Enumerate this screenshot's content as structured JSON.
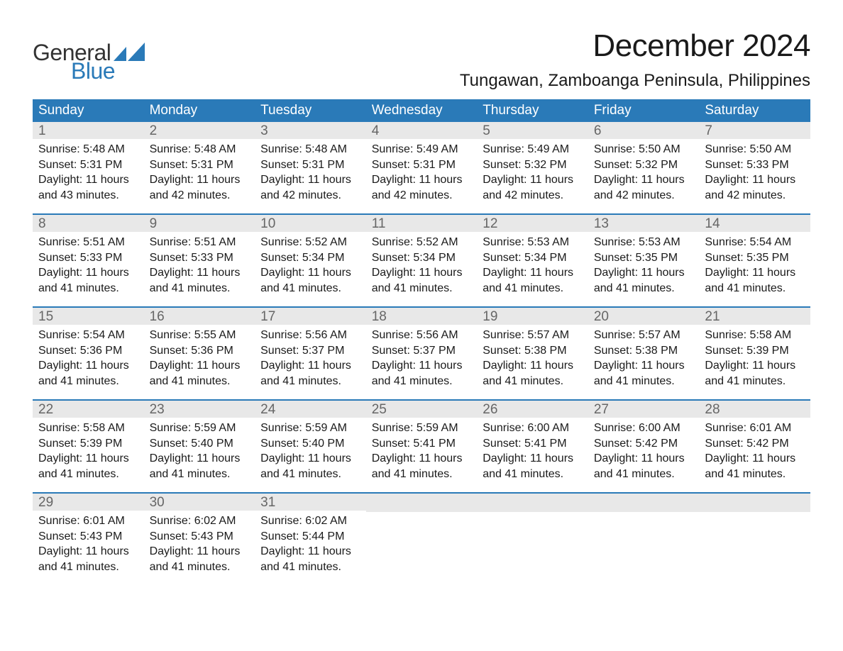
{
  "brand": {
    "line1": "General",
    "line2": "Blue",
    "text_color": "#333333",
    "accent_color": "#2a7ab8"
  },
  "title": "December 2024",
  "location": "Tungawan, Zamboanga Peninsula, Philippines",
  "styling": {
    "header_bg": "#2a7ab8",
    "header_text": "#ffffff",
    "daynum_bg": "#e8e8e8",
    "daynum_text": "#666666",
    "body_text": "#1a1a1a",
    "page_bg": "#ffffff",
    "row_sep_color": "#2a7ab8",
    "title_fontsize": 44,
    "location_fontsize": 24,
    "header_fontsize": 19,
    "daynum_fontsize": 19,
    "cell_fontsize": 16
  },
  "weekdays": [
    "Sunday",
    "Monday",
    "Tuesday",
    "Wednesday",
    "Thursday",
    "Friday",
    "Saturday"
  ],
  "weeks": [
    [
      {
        "day": 1,
        "sunrise": "5:48 AM",
        "sunset": "5:31 PM",
        "daylight": "11 hours and 43 minutes."
      },
      {
        "day": 2,
        "sunrise": "5:48 AM",
        "sunset": "5:31 PM",
        "daylight": "11 hours and 42 minutes."
      },
      {
        "day": 3,
        "sunrise": "5:48 AM",
        "sunset": "5:31 PM",
        "daylight": "11 hours and 42 minutes."
      },
      {
        "day": 4,
        "sunrise": "5:49 AM",
        "sunset": "5:31 PM",
        "daylight": "11 hours and 42 minutes."
      },
      {
        "day": 5,
        "sunrise": "5:49 AM",
        "sunset": "5:32 PM",
        "daylight": "11 hours and 42 minutes."
      },
      {
        "day": 6,
        "sunrise": "5:50 AM",
        "sunset": "5:32 PM",
        "daylight": "11 hours and 42 minutes."
      },
      {
        "day": 7,
        "sunrise": "5:50 AM",
        "sunset": "5:33 PM",
        "daylight": "11 hours and 42 minutes."
      }
    ],
    [
      {
        "day": 8,
        "sunrise": "5:51 AM",
        "sunset": "5:33 PM",
        "daylight": "11 hours and 41 minutes."
      },
      {
        "day": 9,
        "sunrise": "5:51 AM",
        "sunset": "5:33 PM",
        "daylight": "11 hours and 41 minutes."
      },
      {
        "day": 10,
        "sunrise": "5:52 AM",
        "sunset": "5:34 PM",
        "daylight": "11 hours and 41 minutes."
      },
      {
        "day": 11,
        "sunrise": "5:52 AM",
        "sunset": "5:34 PM",
        "daylight": "11 hours and 41 minutes."
      },
      {
        "day": 12,
        "sunrise": "5:53 AM",
        "sunset": "5:34 PM",
        "daylight": "11 hours and 41 minutes."
      },
      {
        "day": 13,
        "sunrise": "5:53 AM",
        "sunset": "5:35 PM",
        "daylight": "11 hours and 41 minutes."
      },
      {
        "day": 14,
        "sunrise": "5:54 AM",
        "sunset": "5:35 PM",
        "daylight": "11 hours and 41 minutes."
      }
    ],
    [
      {
        "day": 15,
        "sunrise": "5:54 AM",
        "sunset": "5:36 PM",
        "daylight": "11 hours and 41 minutes."
      },
      {
        "day": 16,
        "sunrise": "5:55 AM",
        "sunset": "5:36 PM",
        "daylight": "11 hours and 41 minutes."
      },
      {
        "day": 17,
        "sunrise": "5:56 AM",
        "sunset": "5:37 PM",
        "daylight": "11 hours and 41 minutes."
      },
      {
        "day": 18,
        "sunrise": "5:56 AM",
        "sunset": "5:37 PM",
        "daylight": "11 hours and 41 minutes."
      },
      {
        "day": 19,
        "sunrise": "5:57 AM",
        "sunset": "5:38 PM",
        "daylight": "11 hours and 41 minutes."
      },
      {
        "day": 20,
        "sunrise": "5:57 AM",
        "sunset": "5:38 PM",
        "daylight": "11 hours and 41 minutes."
      },
      {
        "day": 21,
        "sunrise": "5:58 AM",
        "sunset": "5:39 PM",
        "daylight": "11 hours and 41 minutes."
      }
    ],
    [
      {
        "day": 22,
        "sunrise": "5:58 AM",
        "sunset": "5:39 PM",
        "daylight": "11 hours and 41 minutes."
      },
      {
        "day": 23,
        "sunrise": "5:59 AM",
        "sunset": "5:40 PM",
        "daylight": "11 hours and 41 minutes."
      },
      {
        "day": 24,
        "sunrise": "5:59 AM",
        "sunset": "5:40 PM",
        "daylight": "11 hours and 41 minutes."
      },
      {
        "day": 25,
        "sunrise": "5:59 AM",
        "sunset": "5:41 PM",
        "daylight": "11 hours and 41 minutes."
      },
      {
        "day": 26,
        "sunrise": "6:00 AM",
        "sunset": "5:41 PM",
        "daylight": "11 hours and 41 minutes."
      },
      {
        "day": 27,
        "sunrise": "6:00 AM",
        "sunset": "5:42 PM",
        "daylight": "11 hours and 41 minutes."
      },
      {
        "day": 28,
        "sunrise": "6:01 AM",
        "sunset": "5:42 PM",
        "daylight": "11 hours and 41 minutes."
      }
    ],
    [
      {
        "day": 29,
        "sunrise": "6:01 AM",
        "sunset": "5:43 PM",
        "daylight": "11 hours and 41 minutes."
      },
      {
        "day": 30,
        "sunrise": "6:02 AM",
        "sunset": "5:43 PM",
        "daylight": "11 hours and 41 minutes."
      },
      {
        "day": 31,
        "sunrise": "6:02 AM",
        "sunset": "5:44 PM",
        "daylight": "11 hours and 41 minutes."
      },
      null,
      null,
      null,
      null
    ]
  ],
  "labels": {
    "sunrise": "Sunrise:",
    "sunset": "Sunset:",
    "daylight": "Daylight:"
  }
}
